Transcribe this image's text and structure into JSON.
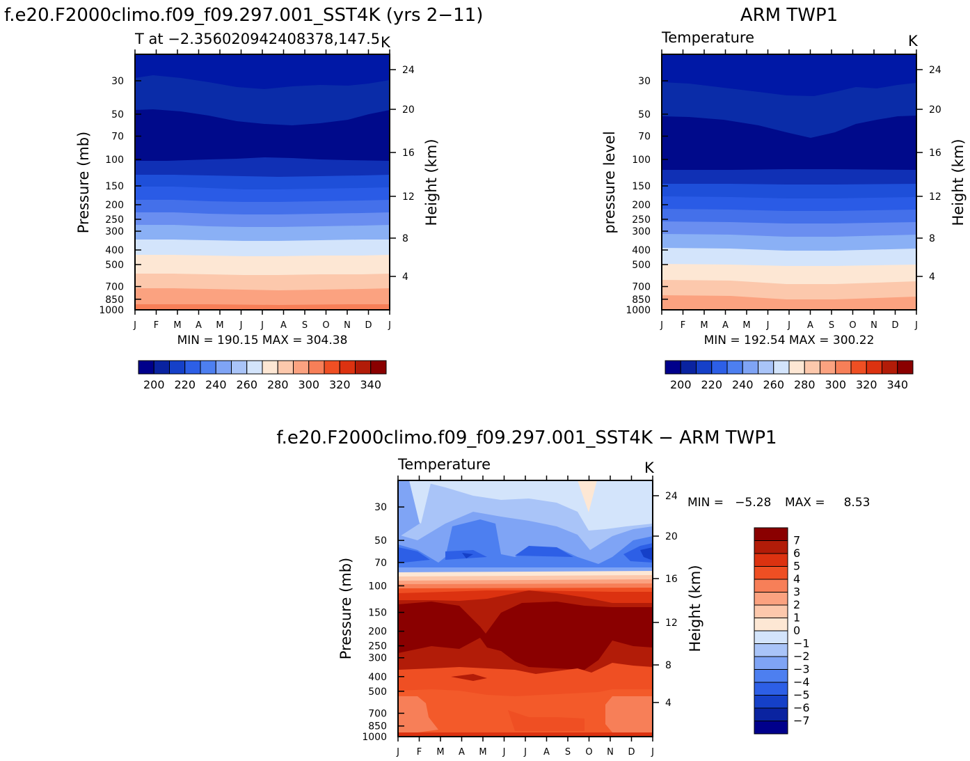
{
  "chart_data": [
    {
      "type": "heatmap",
      "title": "f.e20.F2000climo.f09_f09.297.001_SST4K (yrs 2−11)",
      "subtitle": "T at −2.356020942408378,147.5",
      "units_label": "K",
      "ylabel": "Pressure (mb)",
      "ylabel_right": "Height (km)",
      "months": [
        "J",
        "F",
        "M",
        "A",
        "M",
        "J",
        "J",
        "A",
        "S",
        "O",
        "N",
        "D",
        "J"
      ],
      "pressure_ticks": [
        "30",
        "50",
        "70",
        "100",
        "150",
        "200",
        "250",
        "300",
        "400",
        "500",
        "700",
        "850",
        "1000"
      ],
      "height_ticks": [
        "24",
        "20",
        "16",
        "12",
        "8",
        "4"
      ],
      "ylim_mb": [
        20,
        1000
      ],
      "stats": "MIN = 190.15 MAX = 304.38",
      "colorbar": {
        "orientation": "horizontal",
        "labels": [
          "200",
          "220",
          "240",
          "260",
          "280",
          "300",
          "320",
          "340"
        ],
        "colors": [
          "#00008b",
          "#0a23a0",
          "#1540c8",
          "#2d5fe6",
          "#4d7ff0",
          "#7fa4f5",
          "#a9c4f8",
          "#d3e4fb",
          "#fde7d4",
          "#fcc8ac",
          "#fba280",
          "#f77f58",
          "#ef4f23",
          "#dc3210",
          "#b21c08",
          "#8a0000"
        ]
      },
      "colors": [
        "#0018a6",
        "#0a2ca8",
        "#000a8b",
        "#1030b5",
        "#1e4fd9",
        "#2a5be6",
        "#4470ea",
        "#6a8ef0",
        "#8ab0f5",
        "#d3e4fb",
        "#fde7d4",
        "#fcc8ac",
        "#fba280",
        "#f77f58"
      ]
    },
    {
      "type": "heatmap",
      "title": "ARM TWP1",
      "subtitle": "Temperature",
      "units_label": "K",
      "ylabel": "pressure level",
      "ylabel_right": "Height (km)",
      "months": [
        "J",
        "F",
        "M",
        "A",
        "M",
        "J",
        "J",
        "A",
        "S",
        "O",
        "N",
        "D",
        "J"
      ],
      "pressure_ticks": [
        "30",
        "50",
        "70",
        "100",
        "150",
        "200",
        "250",
        "300",
        "400",
        "500",
        "700",
        "850",
        "1000"
      ],
      "height_ticks": [
        "24",
        "20",
        "16",
        "12",
        "8",
        "4"
      ],
      "ylim_mb": [
        20,
        1000
      ],
      "stats": "MIN = 192.54 MAX = 300.22",
      "colorbar": {
        "orientation": "horizontal",
        "labels": [
          "200",
          "220",
          "240",
          "260",
          "280",
          "300",
          "320",
          "340"
        ],
        "colors": [
          "#00008b",
          "#0a23a0",
          "#1540c8",
          "#2d5fe6",
          "#4d7ff0",
          "#7fa4f5",
          "#a9c4f8",
          "#d3e4fb",
          "#fde7d4",
          "#fcc8ac",
          "#fba280",
          "#f77f58",
          "#ef4f23",
          "#dc3210",
          "#b21c08",
          "#8a0000"
        ]
      }
    },
    {
      "type": "heatmap",
      "title": "f.e20.F2000climo.f09_f09.297.001_SST4K − ARM TWP1",
      "subtitle": "Temperature",
      "units_label": "K",
      "ylabel": "Pressure (mb)",
      "ylabel_right": "Height (km)",
      "months": [
        "J",
        "F",
        "M",
        "A",
        "M",
        "J",
        "J",
        "A",
        "S",
        "O",
        "N",
        "D",
        "J"
      ],
      "pressure_ticks": [
        "30",
        "50",
        "70",
        "100",
        "150",
        "200",
        "250",
        "300",
        "400",
        "500",
        "700",
        "850",
        "1000"
      ],
      "height_ticks": [
        "24",
        "20",
        "16",
        "12",
        "8",
        "4"
      ],
      "ylim_mb": [
        20,
        1000
      ],
      "stats_min": "MIN =   −5.28",
      "stats_max": "MAX =     8.53",
      "colorbar": {
        "orientation": "vertical",
        "labels": [
          "7",
          "6",
          "5",
          "4",
          "3",
          "2",
          "1",
          "0",
          "−1",
          "−2",
          "−3",
          "−4",
          "−5",
          "−6",
          "−7"
        ],
        "colors": [
          "#8a0000",
          "#b21c08",
          "#dc3210",
          "#ef4f23",
          "#f77f58",
          "#fba280",
          "#fcc8ac",
          "#fde7d4",
          "#d3e4fb",
          "#a9c4f8",
          "#7fa4f5",
          "#4d7ff0",
          "#2d5fe6",
          "#1540c8",
          "#0a23a0",
          "#00008b"
        ]
      }
    }
  ]
}
